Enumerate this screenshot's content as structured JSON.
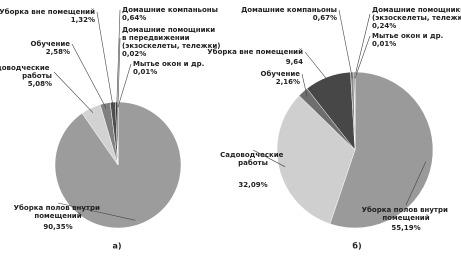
{
  "chart_data": [
    {
      "type": "pie",
      "caption": "а)",
      "categories": [
        "Уборка полов внутри\nпомещений",
        "Садоводческие\nработы",
        "Обучение",
        "Уборка вне помещений",
        "Домашние компаньоны",
        "Домашние помощники\nв передвижении\n(экзоскелеты, тележки)",
        "Мытье окон и др."
      ],
      "values": [
        90.35,
        5.08,
        2.58,
        1.32,
        0.64,
        0.02,
        0.01
      ],
      "value_labels": [
        "90,35%",
        "5,08%",
        "2,58%",
        "1,32%",
        "0,64%",
        "0,02%",
        "0,01%"
      ],
      "colors": [
        "#9c9c9c",
        "#d2d2d2",
        "#808080",
        "#4d4d4d",
        "#333333",
        "#222222",
        "#111111"
      ]
    },
    {
      "type": "pie",
      "caption": "б)",
      "categories": [
        "Уборка полов внутри\nпомещений",
        "Садоводческие\nработы",
        "Обучение",
        "Уборка вне помещений",
        "Домашние компаньоны",
        "Домашние помощники\n(экзоскелеты, тележки)",
        "Мытье окон и др."
      ],
      "values": [
        55.19,
        32.09,
        2.16,
        9.64,
        0.67,
        0.24,
        0.01
      ],
      "value_labels": [
        "55,19%",
        "32,09%",
        "2,16%",
        "9,64",
        "0,67%",
        "0,24%",
        "0,01%"
      ],
      "colors": [
        "#9a9a9a",
        "#cfcfcf",
        "#6e6e6e",
        "#474747",
        "#8a8a8a",
        "#2a2a2a",
        "#111111"
      ]
    }
  ]
}
